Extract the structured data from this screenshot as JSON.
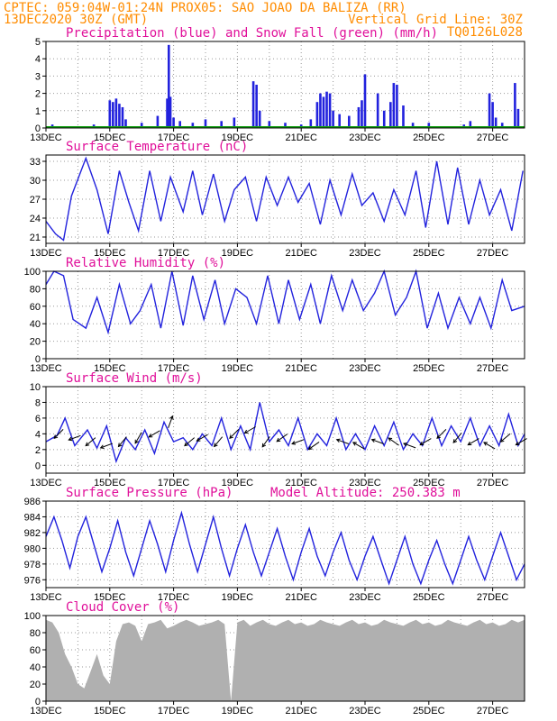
{
  "header": {
    "line1_left": "CPTEC:   059:04W-01:24N   PROX05: SAO JOAO DA BALIZA (RR)",
    "line2_left": "13DEC2020 30Z (GMT)",
    "line2_right": "Vertical Grid Line: 30Z",
    "line3_right": "TQ0126L028"
  },
  "x_axis": {
    "tick_labels": [
      "13DEC",
      "15DEC",
      "17DEC",
      "19DEC",
      "21DEC",
      "23DEC",
      "25DEC",
      "27DEC"
    ],
    "range_days": [
      13,
      28
    ]
  },
  "colors": {
    "series": "#2222dd",
    "snow": "#10a010",
    "cloud": "#b0b0b0",
    "title": "#e0109a",
    "header": "#ff8c00"
  },
  "chart_data": [
    {
      "id": "precip",
      "type": "bar",
      "title": "Precipitation (blue) and Snow Fall (green) (mm/h)",
      "ylim": [
        0,
        5
      ],
      "yticks": [
        "5",
        "4",
        "3",
        "2",
        "1",
        "0"
      ],
      "series": [
        {
          "name": "Precipitation",
          "x": [
            13.2,
            14.0,
            14.5,
            15.0,
            15.1,
            15.2,
            15.3,
            15.4,
            15.5,
            16.0,
            16.5,
            16.8,
            16.85,
            16.9,
            17.0,
            17.2,
            17.6,
            18.0,
            18.5,
            18.9,
            19.5,
            19.6,
            19.7,
            20.0,
            20.5,
            21.0,
            21.3,
            21.5,
            21.6,
            21.7,
            21.8,
            21.9,
            22.0,
            22.2,
            22.5,
            22.8,
            22.9,
            23.0,
            23.4,
            23.6,
            23.8,
            23.9,
            24.0,
            24.2,
            24.5,
            25.0,
            25.3,
            26.1,
            26.3,
            26.9,
            27.0,
            27.1,
            27.3,
            27.7,
            27.8
          ],
          "values": [
            0.2,
            0.1,
            0.2,
            1.6,
            1.5,
            1.7,
            1.4,
            1.2,
            0.5,
            0.3,
            0.7,
            1.7,
            4.8,
            1.8,
            0.6,
            0.4,
            0.3,
            0.5,
            0.4,
            0.6,
            2.7,
            2.5,
            1.0,
            0.4,
            0.3,
            0.2,
            0.5,
            1.5,
            2.0,
            1.8,
            2.1,
            2.0,
            1.0,
            0.8,
            0.7,
            1.2,
            1.6,
            3.1,
            2.0,
            1.0,
            1.5,
            2.6,
            2.5,
            1.3,
            0.3,
            0.3,
            0.1,
            0.2,
            0.4,
            2.0,
            1.5,
            0.6,
            0.3,
            2.6,
            1.1
          ]
        },
        {
          "name": "Snow Fall",
          "x": [
            13.0,
            28.0
          ],
          "values": [
            0,
            0
          ]
        }
      ]
    },
    {
      "id": "temp",
      "type": "line",
      "title": "Surface Temperature (nC)",
      "ylim": [
        20,
        34
      ],
      "yticks": [
        "33",
        "30",
        "27",
        "24",
        "21"
      ],
      "x": [
        13.0,
        13.3,
        13.55,
        13.8,
        14.25,
        14.6,
        14.95,
        15.3,
        15.6,
        15.9,
        16.25,
        16.6,
        16.9,
        17.3,
        17.6,
        17.9,
        18.25,
        18.6,
        18.9,
        19.25,
        19.6,
        19.9,
        20.25,
        20.6,
        20.9,
        21.25,
        21.6,
        21.9,
        22.25,
        22.6,
        22.9,
        23.25,
        23.6,
        23.9,
        24.25,
        24.6,
        24.9,
        25.25,
        25.6,
        25.9,
        26.25,
        26.6,
        26.9,
        27.25,
        27.6,
        27.95
      ],
      "values": [
        23.5,
        21.5,
        20.5,
        27.5,
        33.5,
        28.5,
        21.5,
        31.5,
        26.5,
        22.0,
        31.5,
        23.5,
        30.5,
        25.0,
        31.5,
        24.5,
        31.0,
        23.5,
        28.5,
        30.5,
        23.5,
        30.5,
        26.0,
        30.5,
        26.5,
        29.5,
        23.0,
        30.0,
        24.5,
        31.0,
        26.0,
        28.0,
        23.5,
        28.5,
        24.5,
        31.5,
        22.5,
        33.0,
        23.0,
        32.0,
        23.0,
        30.0,
        24.5,
        28.5,
        22.0,
        31.5
      ]
    },
    {
      "id": "rh",
      "type": "line",
      "title": "Relative Humidity (%)",
      "ylim": [
        0,
        100
      ],
      "yticks": [
        "100",
        "80",
        "60",
        "40",
        "20",
        "0"
      ],
      "x": [
        13.0,
        13.25,
        13.55,
        13.85,
        14.25,
        14.6,
        14.95,
        15.3,
        15.65,
        15.95,
        16.3,
        16.6,
        16.95,
        17.3,
        17.6,
        17.95,
        18.3,
        18.6,
        18.95,
        19.3,
        19.6,
        19.95,
        20.3,
        20.6,
        20.95,
        21.3,
        21.6,
        21.95,
        22.3,
        22.6,
        22.95,
        23.3,
        23.6,
        23.95,
        24.3,
        24.6,
        24.95,
        25.3,
        25.6,
        25.95,
        26.3,
        26.6,
        26.95,
        27.3,
        27.6,
        28.0
      ],
      "values": [
        85,
        100,
        95,
        45,
        35,
        70,
        30,
        85,
        40,
        55,
        85,
        35,
        100,
        38,
        95,
        45,
        90,
        40,
        80,
        70,
        40,
        95,
        40,
        90,
        45,
        85,
        40,
        95,
        55,
        90,
        55,
        75,
        100,
        50,
        70,
        100,
        35,
        75,
        35,
        70,
        40,
        70,
        35,
        90,
        55,
        60
      ]
    },
    {
      "id": "wind",
      "type": "line",
      "title": "Surface Wind (m/s)",
      "ylim": [
        -1,
        10
      ],
      "yticks": [
        "10",
        "8",
        "6",
        "4",
        "2",
        "0"
      ],
      "x": [
        13.0,
        13.35,
        13.6,
        13.9,
        14.3,
        14.6,
        14.9,
        15.2,
        15.5,
        15.8,
        16.1,
        16.4,
        16.7,
        17.0,
        17.3,
        17.6,
        17.9,
        18.2,
        18.5,
        18.8,
        19.1,
        19.4,
        19.7,
        20.0,
        20.3,
        20.6,
        20.9,
        21.2,
        21.5,
        21.8,
        22.1,
        22.4,
        22.7,
        23.0,
        23.3,
        23.6,
        23.9,
        24.2,
        24.5,
        24.8,
        25.1,
        25.4,
        25.7,
        26.0,
        26.3,
        26.6,
        26.9,
        27.2,
        27.5,
        27.8,
        28.0
      ],
      "values": [
        3.0,
        3.8,
        6.0,
        2.5,
        4.5,
        2.2,
        5.0,
        0.5,
        3.5,
        2.0,
        4.5,
        1.5,
        5.5,
        3.0,
        3.5,
        2.0,
        4.0,
        2.5,
        6.0,
        2.0,
        5.0,
        2.0,
        8.0,
        3.0,
        4.5,
        2.5,
        6.0,
        2.0,
        4.0,
        2.5,
        6.0,
        2.0,
        4.0,
        2.0,
        5.0,
        2.5,
        5.5,
        2.0,
        4.0,
        2.5,
        6.0,
        2.5,
        5.0,
        3.0,
        6.0,
        2.5,
        5.0,
        2.5,
        6.5,
        2.5,
        4.0
      ],
      "arrows": [
        {
          "x": 13.4,
          "v": 4.0,
          "dir": 225
        },
        {
          "x": 13.9,
          "v": 3.5,
          "dir": 200
        },
        {
          "x": 14.4,
          "v": 3.0,
          "dir": 220
        },
        {
          "x": 14.9,
          "v": 2.5,
          "dir": 200
        },
        {
          "x": 15.4,
          "v": 3.0,
          "dir": 230
        },
        {
          "x": 15.9,
          "v": 3.5,
          "dir": 240
        },
        {
          "x": 16.4,
          "v": 4.0,
          "dir": 210
        },
        {
          "x": 16.9,
          "v": 5.5,
          "dir": 70
        },
        {
          "x": 17.5,
          "v": 3.0,
          "dir": 220
        },
        {
          "x": 17.9,
          "v": 3.5,
          "dir": 210
        },
        {
          "x": 18.4,
          "v": 3.0,
          "dir": 230
        },
        {
          "x": 18.9,
          "v": 4.0,
          "dir": 225
        },
        {
          "x": 19.4,
          "v": 4.5,
          "dir": 210
        },
        {
          "x": 19.9,
          "v": 3.0,
          "dir": 235
        },
        {
          "x": 20.4,
          "v": 3.5,
          "dir": 215
        },
        {
          "x": 20.9,
          "v": 3.0,
          "dir": 200
        },
        {
          "x": 21.4,
          "v": 2.5,
          "dir": 215
        },
        {
          "x": 22.3,
          "v": 3.0,
          "dir": 160
        },
        {
          "x": 22.8,
          "v": 2.5,
          "dir": 150
        },
        {
          "x": 23.4,
          "v": 3.0,
          "dir": 160
        },
        {
          "x": 23.9,
          "v": 3.0,
          "dir": 145
        },
        {
          "x": 24.4,
          "v": 2.5,
          "dir": 160
        },
        {
          "x": 24.9,
          "v": 3.0,
          "dir": 210
        },
        {
          "x": 25.4,
          "v": 4.0,
          "dir": 225
        },
        {
          "x": 25.9,
          "v": 3.5,
          "dir": 230
        },
        {
          "x": 26.4,
          "v": 3.0,
          "dir": 210
        },
        {
          "x": 26.9,
          "v": 2.5,
          "dir": 150
        },
        {
          "x": 27.4,
          "v": 3.5,
          "dir": 220
        },
        {
          "x": 27.9,
          "v": 3.0,
          "dir": 210
        }
      ]
    },
    {
      "id": "pressure",
      "type": "line",
      "title": "Surface Pressure (hPa)",
      "annotation": "Model Altitude: 250.383 m",
      "ylim": [
        975,
        986
      ],
      "yticks": [
        "986",
        "984",
        "982",
        "980",
        "978",
        "976"
      ],
      "x": [
        13.0,
        13.25,
        13.5,
        13.75,
        14.0,
        14.25,
        14.5,
        14.75,
        15.0,
        15.25,
        15.5,
        15.75,
        16.0,
        16.25,
        16.5,
        16.75,
        17.0,
        17.25,
        17.5,
        17.75,
        18.0,
        18.25,
        18.5,
        18.75,
        19.0,
        19.25,
        19.5,
        19.75,
        20.0,
        20.25,
        20.5,
        20.75,
        21.0,
        21.25,
        21.5,
        21.75,
        22.0,
        22.25,
        22.5,
        22.75,
        23.0,
        23.25,
        23.5,
        23.75,
        24.0,
        24.25,
        24.5,
        24.75,
        25.0,
        25.25,
        25.5,
        25.75,
        26.0,
        26.25,
        26.5,
        26.75,
        27.0,
        27.25,
        27.5,
        27.75,
        28.0
      ],
      "values": [
        981.5,
        984.0,
        981.0,
        977.5,
        981.5,
        984.0,
        980.5,
        977.0,
        980.0,
        983.5,
        979.5,
        976.5,
        980.0,
        983.5,
        980.5,
        977.0,
        981.0,
        984.5,
        980.5,
        977.0,
        980.5,
        984.0,
        980.0,
        976.5,
        980.0,
        983.0,
        979.5,
        976.5,
        979.5,
        982.5,
        979.0,
        976.0,
        979.5,
        982.5,
        979.0,
        976.5,
        979.5,
        982.0,
        978.5,
        976.0,
        979.0,
        981.5,
        978.5,
        975.5,
        978.5,
        981.5,
        978.0,
        975.5,
        978.5,
        981.0,
        978.0,
        975.5,
        978.5,
        981.5,
        978.5,
        976.0,
        979.0,
        982.0,
        979.0,
        976.0,
        978.0
      ]
    },
    {
      "id": "cloud",
      "type": "area",
      "title": "Cloud Cover (%)",
      "ylim": [
        0,
        100
      ],
      "yticks": [
        "100",
        "80",
        "60",
        "40",
        "20",
        "0"
      ],
      "x": [
        13.0,
        13.2,
        13.4,
        13.6,
        13.8,
        14.0,
        14.2,
        14.4,
        14.6,
        14.8,
        15.0,
        15.2,
        15.4,
        15.6,
        15.8,
        16.0,
        16.2,
        16.4,
        16.6,
        16.8,
        17.0,
        17.2,
        17.4,
        17.6,
        17.8,
        18.0,
        18.2,
        18.4,
        18.6,
        18.8,
        19.0,
        19.2,
        19.4,
        19.6,
        19.8,
        20.0,
        20.2,
        20.4,
        20.6,
        20.8,
        21.0,
        21.2,
        21.4,
        21.6,
        21.8,
        22.0,
        22.2,
        22.4,
        22.6,
        22.8,
        23.0,
        23.2,
        23.4,
        23.6,
        23.8,
        24.0,
        24.2,
        24.4,
        24.6,
        24.8,
        25.0,
        25.2,
        25.4,
        25.6,
        25.8,
        26.0,
        26.2,
        26.4,
        26.6,
        26.8,
        27.0,
        27.2,
        27.4,
        27.6,
        27.8,
        28.0
      ],
      "values": [
        95,
        92,
        80,
        55,
        40,
        20,
        15,
        35,
        55,
        30,
        20,
        70,
        90,
        92,
        88,
        70,
        90,
        92,
        95,
        85,
        88,
        92,
        95,
        92,
        88,
        90,
        92,
        95,
        90,
        0,
        92,
        95,
        88,
        92,
        95,
        90,
        88,
        92,
        95,
        90,
        92,
        88,
        90,
        95,
        92,
        90,
        88,
        92,
        95,
        90,
        92,
        88,
        90,
        95,
        92,
        90,
        88,
        92,
        95,
        90,
        92,
        88,
        90,
        95,
        92,
        90,
        88,
        92,
        95,
        90,
        92,
        88,
        90,
        95,
        92,
        95
      ]
    }
  ]
}
